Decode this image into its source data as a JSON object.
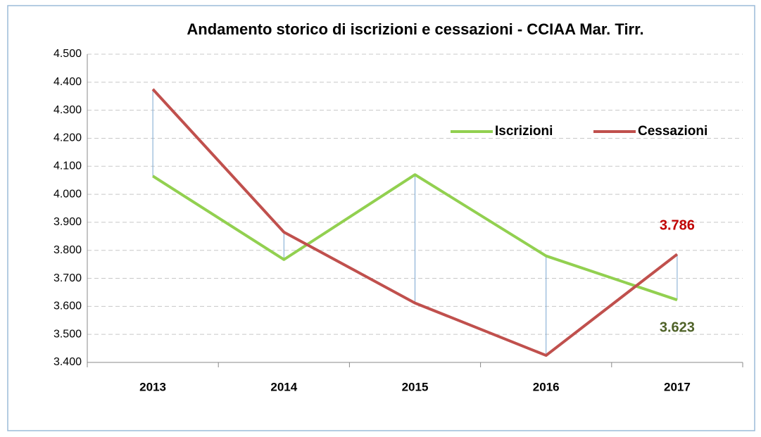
{
  "chart_data": {
    "type": "line",
    "title": "Andamento storico di iscrizioni e cessazioni - CCIAA Mar. Tirr.",
    "categories": [
      "2013",
      "2014",
      "2015",
      "2016",
      "2017"
    ],
    "series": [
      {
        "name": "Iscrizioni",
        "color": "#92d050",
        "values": [
          4065,
          3767,
          4070,
          3780,
          3623
        ],
        "value_labels": [
          null,
          null,
          null,
          null,
          "3.623"
        ],
        "label_color": "#4f6228"
      },
      {
        "name": "Cessazioni",
        "color": "#c0504d",
        "values": [
          4375,
          3865,
          3612,
          3425,
          3786
        ],
        "value_labels": [
          null,
          null,
          null,
          null,
          "3.786"
        ],
        "label_color": "#c00000"
      }
    ],
    "ylim": [
      3400,
      4500
    ],
    "yticks": [
      {
        "value": 3400,
        "label": "3.400"
      },
      {
        "value": 3500,
        "label": "3.500"
      },
      {
        "value": 3600,
        "label": "3.600"
      },
      {
        "value": 3700,
        "label": "3.700"
      },
      {
        "value": 3800,
        "label": "3.800"
      },
      {
        "value": 3900,
        "label": "3.900"
      },
      {
        "value": 4000,
        "label": "4.000"
      },
      {
        "value": 4100,
        "label": "4.100"
      },
      {
        "value": 4200,
        "label": "4.200"
      },
      {
        "value": 4300,
        "label": "4.300"
      },
      {
        "value": 4400,
        "label": "4.400"
      },
      {
        "value": 4500,
        "label": "4.500"
      }
    ],
    "grid": true,
    "high_low_lines": true,
    "legend": "upper right"
  }
}
